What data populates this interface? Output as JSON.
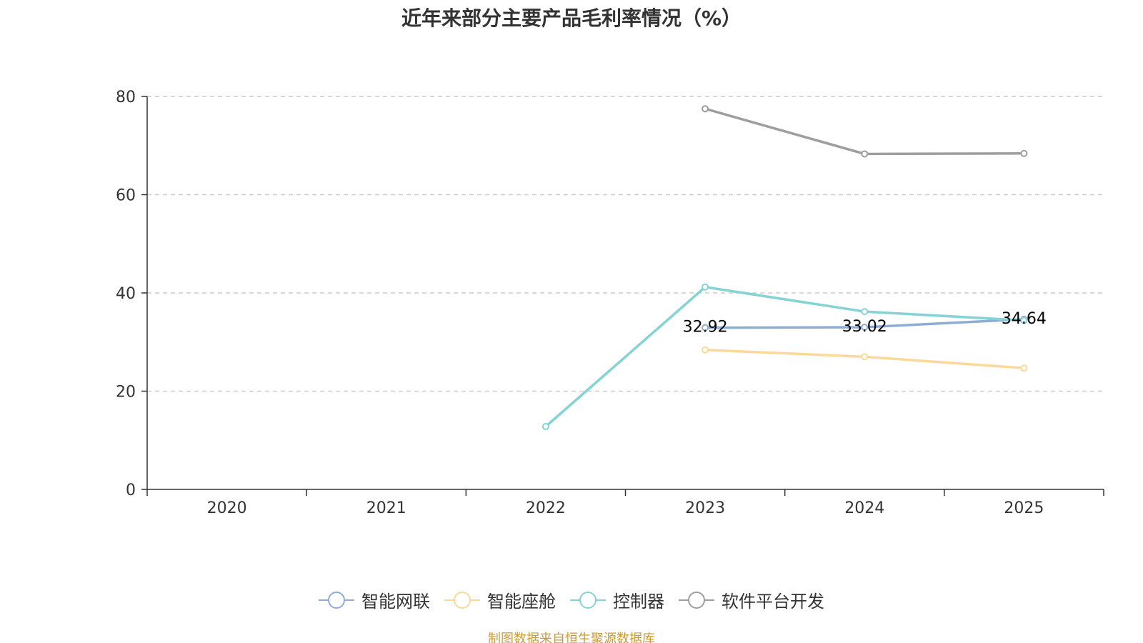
{
  "chart_data": {
    "type": "line",
    "title": "近年来部分主要产品毛利率情况（%）",
    "categories": [
      "2020",
      "2021",
      "2022",
      "2023",
      "2024",
      "2025"
    ],
    "ylim": [
      0,
      80
    ],
    "yticks": [
      0,
      20,
      40,
      60,
      80
    ],
    "grid": true,
    "legend_position": "bottom",
    "series": [
      {
        "name": "智能网联",
        "color": "#8eacd4",
        "values": [
          null,
          null,
          null,
          32.92,
          33.02,
          34.64
        ],
        "labels": [
          "",
          "",
          "",
          "32.92",
          "33.02",
          "34.64"
        ]
      },
      {
        "name": "智能座舱",
        "color": "#fcd89a",
        "values": [
          null,
          null,
          null,
          28.4,
          27.0,
          24.7
        ],
        "labels": []
      },
      {
        "name": "控制器",
        "color": "#86d3d5",
        "values": [
          null,
          null,
          12.8,
          41.2,
          36.2,
          34.4
        ],
        "labels": []
      },
      {
        "name": "软件平台开发",
        "color": "#9e9e9e",
        "values": [
          null,
          null,
          null,
          77.5,
          68.3,
          68.4
        ],
        "labels": []
      }
    ]
  },
  "source_note": "制图数据来自恒生聚源数据库"
}
